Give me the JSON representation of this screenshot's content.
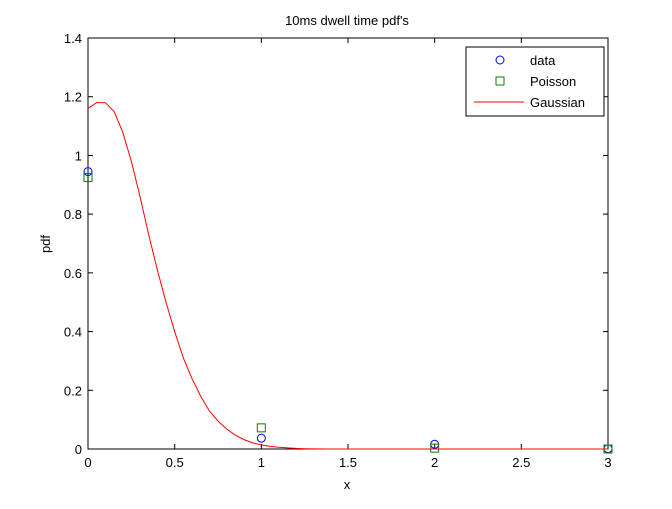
{
  "chart_data": {
    "type": "line",
    "title": "10ms dwell time pdf's",
    "xlabel": "x",
    "ylabel": "pdf",
    "xlim": [
      0,
      3
    ],
    "ylim": [
      0,
      1.4
    ],
    "xticks": [
      0,
      0.5,
      1,
      1.5,
      2,
      2.5,
      3
    ],
    "yticks": [
      0,
      0.2,
      0.4,
      0.6,
      0.8,
      1,
      1.2,
      1.4
    ],
    "xtick_labels": [
      "0",
      "0.5",
      "1",
      "1.5",
      "2",
      "2.5",
      "3"
    ],
    "ytick_labels": [
      "0",
      "0.2",
      "0.4",
      "0.6",
      "0.8",
      "1",
      "1.2",
      "1.4"
    ],
    "grid": false,
    "legend_position": "top-right",
    "series": [
      {
        "name": "data",
        "marker": "circle",
        "color": "#0000ff",
        "x": [
          0,
          1,
          2,
          3
        ],
        "y": [
          0.945,
          0.037,
          0.016,
          0.001
        ]
      },
      {
        "name": "Poisson",
        "marker": "square",
        "color": "#008000",
        "x": [
          0,
          1,
          2,
          3
        ],
        "y": [
          0.925,
          0.072,
          0.003,
          0.0
        ]
      },
      {
        "name": "Gaussian",
        "marker": "line",
        "color": "#ff0000",
        "x": [
          0,
          0.05,
          0.1,
          0.15,
          0.2,
          0.25,
          0.3,
          0.35,
          0.4,
          0.45,
          0.5,
          0.55,
          0.6,
          0.65,
          0.7,
          0.75,
          0.8,
          0.85,
          0.9,
          0.95,
          1.0,
          1.05,
          1.1,
          1.15,
          1.2,
          1.25,
          1.3,
          1.4,
          1.5,
          1.75,
          2.0,
          2.5,
          3.0
        ],
        "y": [
          1.16,
          1.18,
          1.18,
          1.15,
          1.08,
          0.98,
          0.86,
          0.73,
          0.61,
          0.5,
          0.4,
          0.31,
          0.24,
          0.18,
          0.13,
          0.095,
          0.068,
          0.047,
          0.032,
          0.021,
          0.014,
          0.009,
          0.006,
          0.004,
          0.002,
          0.001,
          0.0005,
          0.0002,
          0.0001,
          0.0,
          0.0,
          0.0,
          0.0
        ]
      }
    ]
  }
}
